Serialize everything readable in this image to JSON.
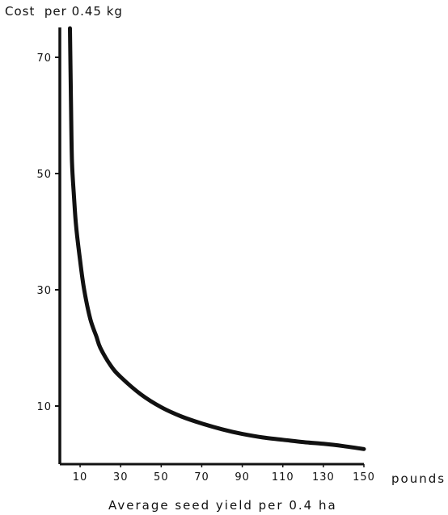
{
  "chart_data": {
    "type": "line",
    "title": "Cost  per 0.45 kg",
    "xlabel": "Average seed yield per 0.4 ha",
    "x_unit_label": "pounds",
    "ylabel": "",
    "xlim": [
      0,
      150
    ],
    "ylim": [
      0,
      76
    ],
    "x_ticks": [
      10,
      30,
      50,
      70,
      90,
      110,
      130,
      150
    ],
    "y_ticks": [
      10,
      30,
      50,
      70
    ],
    "grid": false,
    "legend": "none",
    "series": [
      {
        "x": [
          5,
          5.5,
          6,
          7,
          8,
          10,
          12,
          15,
          18,
          20,
          25,
          30,
          40,
          50,
          60,
          70,
          80,
          90,
          100,
          110,
          120,
          130,
          140,
          150
        ],
        "y": [
          75,
          62,
          52,
          46,
          41,
          35,
          30,
          25,
          22,
          20,
          17,
          15,
          12,
          9.8,
          8.2,
          7,
          6,
          5.2,
          4.6,
          4.2,
          3.8,
          3.5,
          3.1,
          2.6
        ]
      }
    ]
  }
}
